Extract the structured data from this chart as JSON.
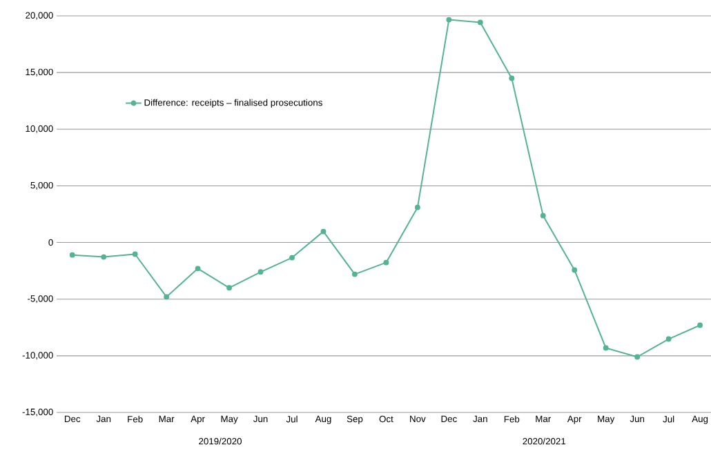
{
  "chart_data": {
    "type": "line",
    "categories": [
      "Dec",
      "Jan",
      "Feb",
      "Mar",
      "Apr",
      "May",
      "Jun",
      "Jul",
      "Aug",
      "Sep",
      "Oct",
      "Nov",
      "Dec",
      "Jan",
      "Feb",
      "Mar",
      "Apr",
      "May",
      "Jun",
      "Jul",
      "Aug"
    ],
    "series": [
      {
        "name": "Difference: receipts – finalised prosecutions",
        "color": "#55b394",
        "values": [
          -1100,
          -1280,
          -1030,
          -4800,
          -2300,
          -4000,
          -2600,
          -1340,
          970,
          -2800,
          -1770,
          3100,
          19660,
          19420,
          14490,
          2370,
          -2430,
          -9310,
          -10100,
          -8520,
          -7300
        ]
      }
    ],
    "ylim": [
      -15000,
      20000
    ],
    "yticks": [
      {
        "value": -15000,
        "label": "-15,000"
      },
      {
        "value": -10000,
        "label": "-10,000"
      },
      {
        "value": -5000,
        "label": "-5,000"
      },
      {
        "value": 0,
        "label": "0"
      },
      {
        "value": 5000,
        "label": "5,000"
      },
      {
        "value": 10000,
        "label": "10,000"
      },
      {
        "value": 15000,
        "label": "15,000"
      },
      {
        "value": 20000,
        "label": "20,000"
      }
    ],
    "annotations": [
      "2019/2020",
      "2020/2021"
    ],
    "grid": "y",
    "legend": "top left",
    "marker": "circle",
    "line_style": "solid"
  }
}
